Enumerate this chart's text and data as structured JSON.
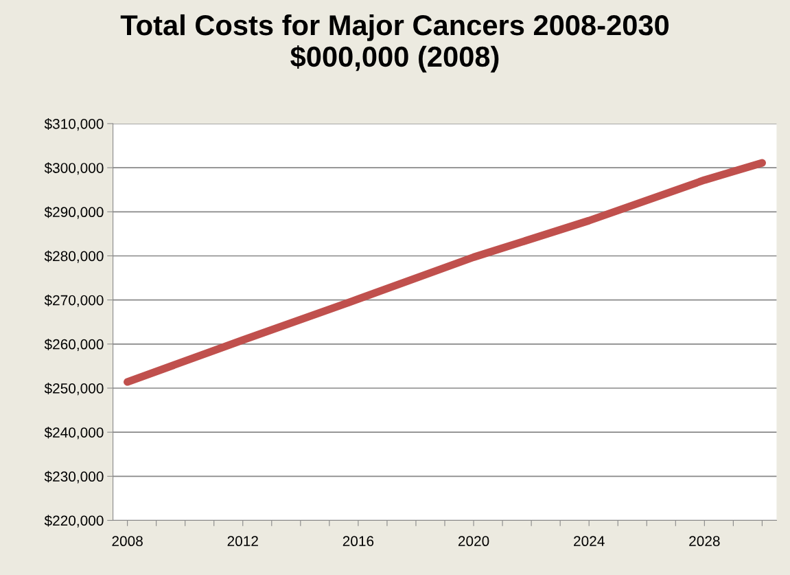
{
  "chart_data": {
    "type": "line",
    "title": "Total Costs for Major Cancers 2008-2030\n$000,000 (2008)",
    "x": [
      2008,
      2012,
      2016,
      2020,
      2024,
      2028,
      2030
    ],
    "series": [
      {
        "color": "#c0504d",
        "values": [
          251400,
          260900,
          270200,
          279700,
          288000,
          297200,
          301100
        ]
      }
    ],
    "xlim": [
      2007.5,
      2030.5
    ],
    "xticks": [
      2008,
      {
        "value": 2009,
        "label": null
      },
      {
        "value": 2010,
        "label": null
      },
      {
        "value": 2011,
        "label": null
      },
      2012,
      {
        "value": 2013,
        "label": null
      },
      {
        "value": 2014,
        "label": null
      },
      {
        "value": 2015,
        "label": null
      },
      2016,
      {
        "value": 2017,
        "label": null
      },
      {
        "value": 2018,
        "label": null
      },
      {
        "value": 2019,
        "label": null
      },
      2020,
      {
        "value": 2021,
        "label": null
      },
      {
        "value": 2022,
        "label": null
      },
      {
        "value": 2023,
        "label": null
      },
      2024,
      {
        "value": 2025,
        "label": null
      },
      {
        "value": 2026,
        "label": null
      },
      {
        "value": 2027,
        "label": null
      },
      2028,
      {
        "value": 2029,
        "label": null
      },
      {
        "value": 2030,
        "label": null
      }
    ],
    "ylim": [
      220000,
      310000
    ],
    "yticks": [
      {
        "value": 220000,
        "label": "$220,000"
      },
      {
        "value": 230000,
        "label": "$230,000"
      },
      {
        "value": 240000,
        "label": "$240,000"
      },
      {
        "value": 250000,
        "label": "$250,000"
      },
      {
        "value": 260000,
        "label": "$260,000"
      },
      {
        "value": 270000,
        "label": "$270,000"
      },
      {
        "value": 280000,
        "label": "$280,000"
      },
      {
        "value": 290000,
        "label": "$290,000"
      },
      {
        "value": 300000,
        "label": "$300,000"
      },
      {
        "value": 310000,
        "label": "$310,000"
      }
    ],
    "grid": "y",
    "legend": false,
    "line_style": "solid"
  }
}
